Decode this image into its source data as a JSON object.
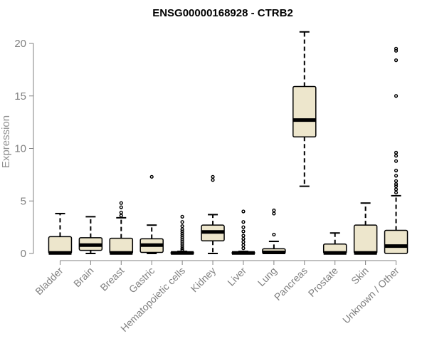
{
  "chart_data": {
    "type": "boxplot",
    "title": "ENSG00000168928 - CTRB2",
    "ylabel": "Expression",
    "xlabel": "",
    "ylim": [
      0,
      21.5
    ],
    "yticks": [
      0,
      5,
      10,
      15,
      20
    ],
    "grid": false,
    "colors": {
      "box_fill": "#ede6cc",
      "stroke": "#000000",
      "axis": "#808080",
      "text": "#808080"
    },
    "categories": [
      "Bladder",
      "Brain",
      "Breast",
      "Gastric",
      "Hematopoietic cells",
      "Kidney",
      "Liver",
      "Lung",
      "Pancreas",
      "Prostate",
      "Skin",
      "Unknown / Other"
    ],
    "boxes": [
      {
        "q1": 0,
        "median": 0.05,
        "q3": 1.6,
        "whisker_low": 0,
        "whisker_high": 3.8,
        "outliers": []
      },
      {
        "q1": 0.3,
        "median": 0.8,
        "q3": 1.5,
        "whisker_low": 0,
        "whisker_high": 3.5,
        "outliers": []
      },
      {
        "q1": 0,
        "median": 0.05,
        "q3": 1.45,
        "whisker_low": 0,
        "whisker_high": 3.4,
        "outliers": [
          3.6,
          3.9,
          4.4,
          4.8
        ]
      },
      {
        "q1": 0.1,
        "median": 0.8,
        "q3": 1.4,
        "whisker_low": 0,
        "whisker_high": 2.7,
        "outliers": [
          7.3
        ]
      },
      {
        "q1": 0,
        "median": 0.05,
        "q3": 0.1,
        "whisker_low": 0,
        "whisker_high": 0.2,
        "outliers": [
          0.35,
          0.5,
          0.7,
          0.9,
          1.1,
          1.3,
          1.5,
          1.7,
          1.9,
          2.1,
          2.3,
          2.6,
          3.0,
          3.5
        ]
      },
      {
        "q1": 1.2,
        "median": 2.05,
        "q3": 2.7,
        "whisker_low": 0,
        "whisker_high": 3.7,
        "outliers": [
          7.0,
          7.3
        ]
      },
      {
        "q1": 0,
        "median": 0.05,
        "q3": 0.1,
        "whisker_low": 0,
        "whisker_high": 0.2,
        "outliers": [
          0.5,
          0.8,
          1.1,
          1.4,
          1.7,
          2.1,
          2.5,
          3.0,
          4.0
        ]
      },
      {
        "q1": 0,
        "median": 0.1,
        "q3": 0.45,
        "whisker_low": 0,
        "whisker_high": 1.15,
        "outliers": [
          1.8,
          3.8,
          4.1
        ]
      },
      {
        "q1": 11.1,
        "median": 12.7,
        "q3": 15.9,
        "whisker_low": 6.4,
        "whisker_high": 21.1,
        "outliers": []
      },
      {
        "q1": 0,
        "median": 0.05,
        "q3": 0.9,
        "whisker_low": 0,
        "whisker_high": 1.95,
        "outliers": []
      },
      {
        "q1": 0,
        "median": 0.05,
        "q3": 2.7,
        "whisker_low": 0,
        "whisker_high": 4.8,
        "outliers": []
      },
      {
        "q1": 0,
        "median": 0.7,
        "q3": 2.2,
        "whisker_low": 0,
        "whisker_high": 5.5,
        "outliers": [
          5.8,
          6.1,
          6.4,
          6.6,
          6.9,
          7.4,
          7.9,
          8.8,
          9.3,
          9.6,
          15.0,
          18.4,
          19.3,
          19.5
        ]
      }
    ]
  }
}
